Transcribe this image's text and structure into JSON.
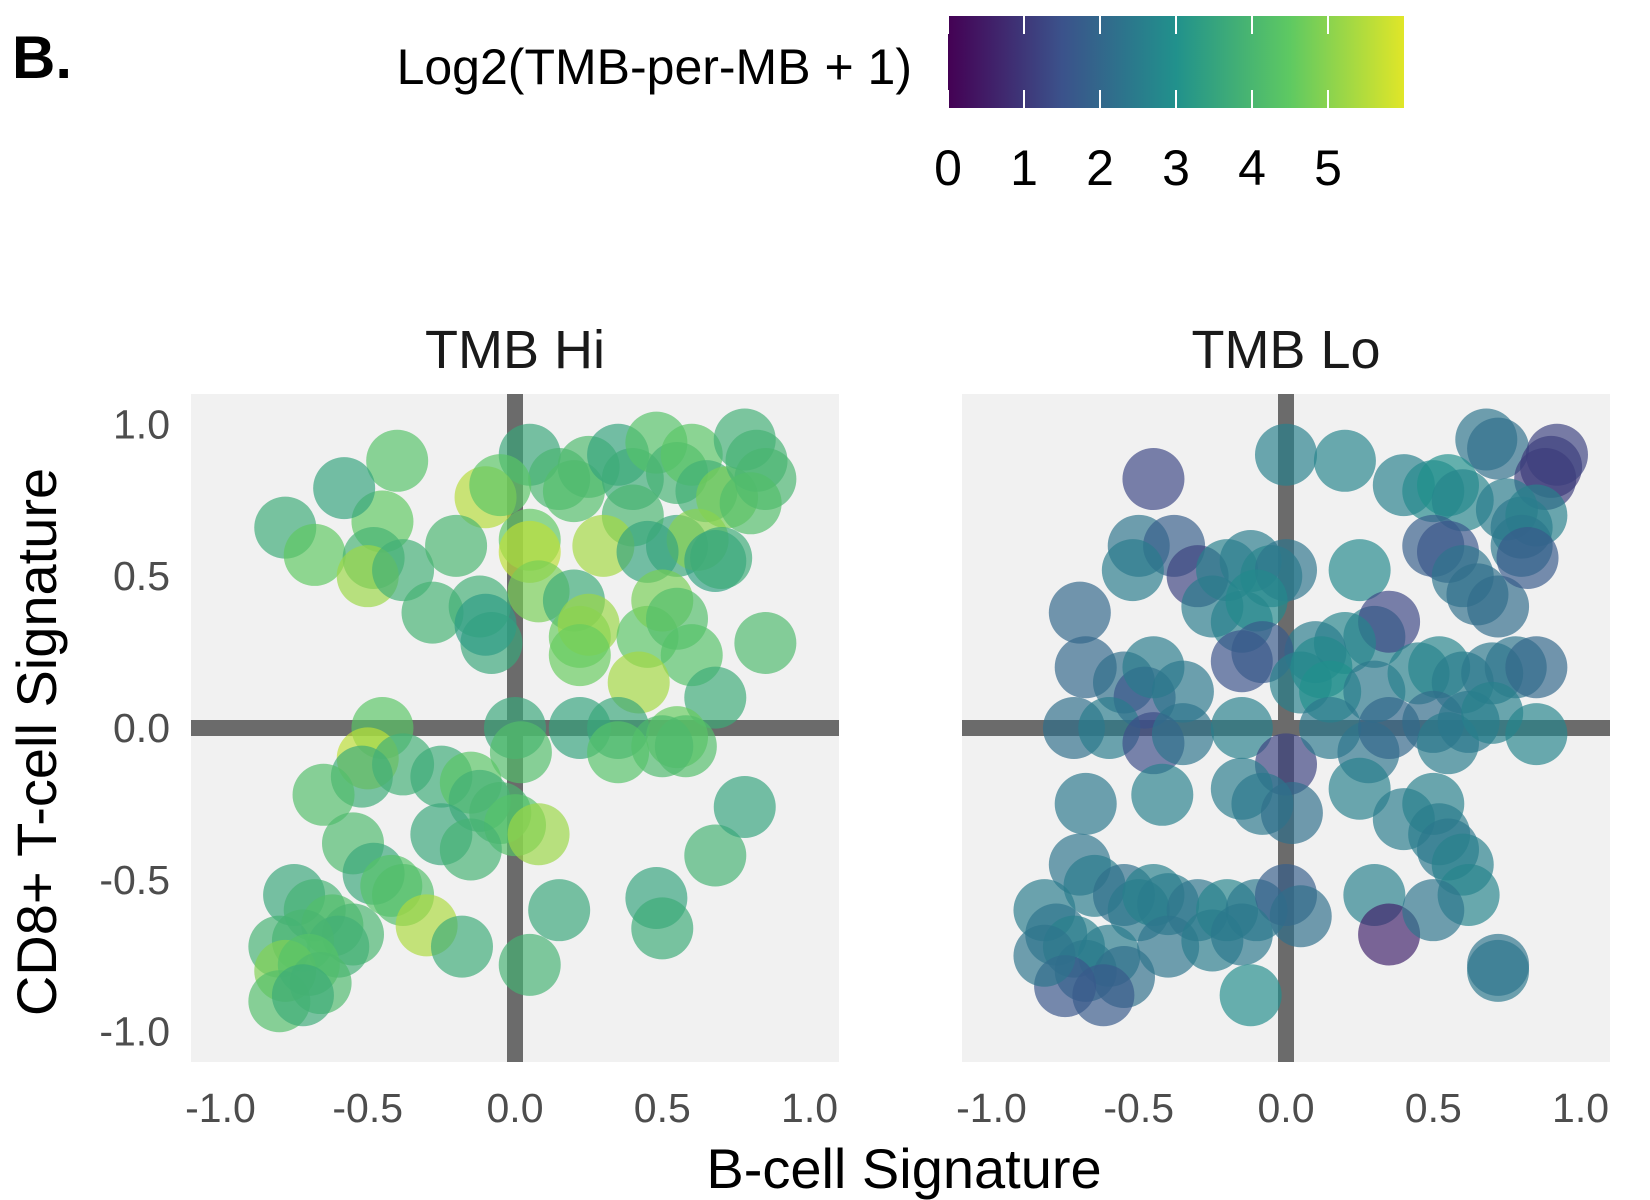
{
  "panel_label": "B.",
  "legend": {
    "title": "Log2(TMB-per-MB + 1)",
    "ticks": [
      "0",
      "1",
      "2",
      "3",
      "4",
      "5"
    ],
    "range": [
      0,
      6
    ],
    "palette": [
      "#440154",
      "#3b528b",
      "#21918c",
      "#5ec962",
      "#e0e628"
    ]
  },
  "axes": {
    "xlabel": "B-cell Signature",
    "ylabel": "CD8+ T-cell Signature",
    "x_ticks": [
      "-1.0",
      "-0.5",
      "0.0",
      "0.5",
      "1.0"
    ],
    "y_ticks": [
      "1.0",
      "0.5",
      "0.0",
      "-0.5",
      "-1.0"
    ]
  },
  "chart_data": [
    {
      "type": "scatter",
      "title": "TMB Hi",
      "xlim": [
        -1.1,
        1.1
      ],
      "ylim": [
        -1.1,
        1.1
      ],
      "reference_lines": {
        "x": 0,
        "y": 0
      },
      "points": [
        {
          "x": 0.05,
          "y": 0.9,
          "c": 3.6
        },
        {
          "x": 0.15,
          "y": 0.82,
          "c": 4.0
        },
        {
          "x": 0.2,
          "y": 0.78,
          "c": 4.2
        },
        {
          "x": 0.25,
          "y": 0.86,
          "c": 4.1
        },
        {
          "x": 0.35,
          "y": 0.9,
          "c": 3.5
        },
        {
          "x": 0.4,
          "y": 0.82,
          "c": 3.7
        },
        {
          "x": 0.48,
          "y": 0.94,
          "c": 4.3
        },
        {
          "x": 0.55,
          "y": 0.84,
          "c": 3.9
        },
        {
          "x": 0.6,
          "y": 0.9,
          "c": 4.4
        },
        {
          "x": 0.65,
          "y": 0.78,
          "c": 3.8
        },
        {
          "x": 0.72,
          "y": 0.76,
          "c": 4.8
        },
        {
          "x": 0.78,
          "y": 0.95,
          "c": 3.8
        },
        {
          "x": 0.82,
          "y": 0.88,
          "c": 3.9
        },
        {
          "x": 0.85,
          "y": 0.82,
          "c": 4.0
        },
        {
          "x": 0.8,
          "y": 0.74,
          "c": 4.2
        },
        {
          "x": 0.55,
          "y": 0.6,
          "c": 3.6
        },
        {
          "x": 0.62,
          "y": 0.62,
          "c": 5.0
        },
        {
          "x": 0.68,
          "y": 0.55,
          "c": 3.4
        },
        {
          "x": 0.7,
          "y": 0.56,
          "c": 3.7
        },
        {
          "x": 0.4,
          "y": 0.7,
          "c": 4.0
        },
        {
          "x": 0.3,
          "y": 0.6,
          "c": 5.3
        },
        {
          "x": 0.45,
          "y": 0.58,
          "c": 3.5
        },
        {
          "x": 0.05,
          "y": 0.62,
          "c": 4.5
        },
        {
          "x": 0.05,
          "y": 0.58,
          "c": 5.6
        },
        {
          "x": -0.1,
          "y": 0.76,
          "c": 5.5
        },
        {
          "x": -0.05,
          "y": 0.8,
          "c": 4.4
        },
        {
          "x": -0.45,
          "y": 0.68,
          "c": 4.5
        },
        {
          "x": -0.4,
          "y": 0.88,
          "c": 4.3
        },
        {
          "x": -0.58,
          "y": 0.79,
          "c": 3.5
        },
        {
          "x": -0.78,
          "y": 0.66,
          "c": 3.7
        },
        {
          "x": -0.68,
          "y": 0.57,
          "c": 4.5
        },
        {
          "x": -0.48,
          "y": 0.56,
          "c": 3.9
        },
        {
          "x": -0.5,
          "y": 0.5,
          "c": 5.2
        },
        {
          "x": -0.38,
          "y": 0.52,
          "c": 3.8
        },
        {
          "x": -0.28,
          "y": 0.38,
          "c": 3.9
        },
        {
          "x": -0.2,
          "y": 0.6,
          "c": 4.0
        },
        {
          "x": -0.12,
          "y": 0.4,
          "c": 3.8
        },
        {
          "x": -0.08,
          "y": 0.28,
          "c": 3.6
        },
        {
          "x": -0.1,
          "y": 0.34,
          "c": 3.3
        },
        {
          "x": 0.08,
          "y": 0.45,
          "c": 4.8
        },
        {
          "x": 0.2,
          "y": 0.42,
          "c": 3.7
        },
        {
          "x": 0.22,
          "y": 0.3,
          "c": 4.6
        },
        {
          "x": 0.25,
          "y": 0.34,
          "c": 5.2
        },
        {
          "x": 0.22,
          "y": 0.24,
          "c": 4.6
        },
        {
          "x": 0.45,
          "y": 0.3,
          "c": 4.4
        },
        {
          "x": 0.5,
          "y": 0.42,
          "c": 4.8
        },
        {
          "x": 0.55,
          "y": 0.36,
          "c": 4.2
        },
        {
          "x": 0.6,
          "y": 0.24,
          "c": 4.3
        },
        {
          "x": 0.42,
          "y": 0.15,
          "c": 5.3
        },
        {
          "x": 0.68,
          "y": 0.1,
          "c": 3.7
        },
        {
          "x": 0.85,
          "y": 0.28,
          "c": 4.1
        },
        {
          "x": 0.22,
          "y": 0.0,
          "c": 3.5
        },
        {
          "x": 0.35,
          "y": 0.0,
          "c": 3.6
        },
        {
          "x": 0.55,
          "y": -0.03,
          "c": 4.6
        },
        {
          "x": 0.58,
          "y": -0.06,
          "c": 4.2
        },
        {
          "x": 0.5,
          "y": -0.06,
          "c": 4.1
        },
        {
          "x": 0.35,
          "y": -0.08,
          "c": 4.3
        },
        {
          "x": 0.0,
          "y": 0.0,
          "c": 3.6
        },
        {
          "x": 0.02,
          "y": -0.08,
          "c": 4.2
        },
        {
          "x": -0.45,
          "y": 0.0,
          "c": 4.4
        },
        {
          "x": -0.5,
          "y": -0.1,
          "c": 5.6
        },
        {
          "x": -0.52,
          "y": -0.16,
          "c": 3.7
        },
        {
          "x": -0.65,
          "y": -0.22,
          "c": 4.2
        },
        {
          "x": -0.38,
          "y": -0.12,
          "c": 3.8
        },
        {
          "x": -0.25,
          "y": -0.16,
          "c": 3.7
        },
        {
          "x": -0.15,
          "y": -0.18,
          "c": 4.4
        },
        {
          "x": -0.12,
          "y": -0.24,
          "c": 3.8
        },
        {
          "x": -0.05,
          "y": -0.28,
          "c": 4.0
        },
        {
          "x": 0.0,
          "y": -0.32,
          "c": 4.3
        },
        {
          "x": 0.08,
          "y": -0.35,
          "c": 5.2
        },
        {
          "x": -0.25,
          "y": -0.35,
          "c": 3.6
        },
        {
          "x": -0.15,
          "y": -0.4,
          "c": 3.9
        },
        {
          "x": -0.55,
          "y": -0.38,
          "c": 4.1
        },
        {
          "x": -0.48,
          "y": -0.48,
          "c": 3.6
        },
        {
          "x": -0.42,
          "y": -0.52,
          "c": 4.3
        },
        {
          "x": -0.38,
          "y": -0.55,
          "c": 4.2
        },
        {
          "x": -0.3,
          "y": -0.65,
          "c": 5.4
        },
        {
          "x": -0.18,
          "y": -0.72,
          "c": 3.7
        },
        {
          "x": -0.75,
          "y": -0.55,
          "c": 3.6
        },
        {
          "x": -0.68,
          "y": -0.6,
          "c": 3.9
        },
        {
          "x": -0.62,
          "y": -0.65,
          "c": 4.2
        },
        {
          "x": -0.55,
          "y": -0.68,
          "c": 4.0
        },
        {
          "x": -0.6,
          "y": -0.72,
          "c": 3.8
        },
        {
          "x": -0.72,
          "y": -0.7,
          "c": 4.0
        },
        {
          "x": -0.8,
          "y": -0.72,
          "c": 3.9
        },
        {
          "x": -0.78,
          "y": -0.8,
          "c": 4.9
        },
        {
          "x": -0.7,
          "y": -0.78,
          "c": 4.3
        },
        {
          "x": -0.66,
          "y": -0.84,
          "c": 4.1
        },
        {
          "x": -0.8,
          "y": -0.9,
          "c": 4.2
        },
        {
          "x": -0.72,
          "y": -0.88,
          "c": 3.7
        },
        {
          "x": 0.15,
          "y": -0.6,
          "c": 3.6
        },
        {
          "x": 0.05,
          "y": -0.78,
          "c": 3.9
        },
        {
          "x": 0.48,
          "y": -0.56,
          "c": 3.5
        },
        {
          "x": 0.5,
          "y": -0.66,
          "c": 3.7
        },
        {
          "x": 0.68,
          "y": -0.42,
          "c": 3.9
        },
        {
          "x": 0.78,
          "y": -0.26,
          "c": 3.5
        }
      ]
    },
    {
      "type": "scatter",
      "title": "TMB Lo",
      "xlim": [
        -1.1,
        1.1
      ],
      "ylim": [
        -1.1,
        1.1
      ],
      "reference_lines": {
        "x": 0,
        "y": 0
      },
      "points": [
        {
          "x": 0.0,
          "y": 0.9,
          "c": 2.6
        },
        {
          "x": 0.2,
          "y": 0.88,
          "c": 2.7
        },
        {
          "x": -0.45,
          "y": 0.82,
          "c": 1.3
        },
        {
          "x": 0.68,
          "y": 0.95,
          "c": 2.3
        },
        {
          "x": 0.72,
          "y": 0.92,
          "c": 2.2
        },
        {
          "x": 0.9,
          "y": 0.86,
          "c": 1.0
        },
        {
          "x": 0.92,
          "y": 0.9,
          "c": 1.2
        },
        {
          "x": 0.88,
          "y": 0.82,
          "c": 1.1
        },
        {
          "x": 0.4,
          "y": 0.8,
          "c": 2.6
        },
        {
          "x": 0.5,
          "y": 0.78,
          "c": 2.8
        },
        {
          "x": 0.55,
          "y": 0.8,
          "c": 3.0
        },
        {
          "x": 0.6,
          "y": 0.75,
          "c": 2.7
        },
        {
          "x": 0.75,
          "y": 0.72,
          "c": 2.5
        },
        {
          "x": 0.8,
          "y": 0.66,
          "c": 2.4
        },
        {
          "x": 0.85,
          "y": 0.7,
          "c": 2.6
        },
        {
          "x": 0.5,
          "y": 0.6,
          "c": 1.8
        },
        {
          "x": 0.55,
          "y": 0.58,
          "c": 1.6
        },
        {
          "x": 0.6,
          "y": 0.5,
          "c": 2.3
        },
        {
          "x": 0.65,
          "y": 0.44,
          "c": 2.2
        },
        {
          "x": 0.72,
          "y": 0.4,
          "c": 2.1
        },
        {
          "x": 0.8,
          "y": 0.6,
          "c": 2.4
        },
        {
          "x": 0.82,
          "y": 0.56,
          "c": 1.7
        },
        {
          "x": -0.5,
          "y": 0.6,
          "c": 2.3
        },
        {
          "x": -0.38,
          "y": 0.6,
          "c": 1.8
        },
        {
          "x": -0.52,
          "y": 0.52,
          "c": 2.5
        },
        {
          "x": -0.3,
          "y": 0.5,
          "c": 1.2
        },
        {
          "x": -0.2,
          "y": 0.52,
          "c": 2.6
        },
        {
          "x": -0.12,
          "y": 0.55,
          "c": 2.5
        },
        {
          "x": -0.05,
          "y": 0.5,
          "c": 2.7
        },
        {
          "x": 0.0,
          "y": 0.52,
          "c": 2.3
        },
        {
          "x": -0.25,
          "y": 0.4,
          "c": 2.5
        },
        {
          "x": -0.15,
          "y": 0.35,
          "c": 2.6
        },
        {
          "x": -0.1,
          "y": 0.42,
          "c": 2.8
        },
        {
          "x": 0.25,
          "y": 0.52,
          "c": 2.8
        },
        {
          "x": 0.3,
          "y": 0.3,
          "c": 2.6
        },
        {
          "x": 0.35,
          "y": 0.35,
          "c": 1.3
        },
        {
          "x": 0.2,
          "y": 0.28,
          "c": 2.7
        },
        {
          "x": 0.1,
          "y": 0.25,
          "c": 2.5
        },
        {
          "x": -0.7,
          "y": 0.38,
          "c": 2.0
        },
        {
          "x": -0.68,
          "y": 0.2,
          "c": 2.0
        },
        {
          "x": -0.55,
          "y": 0.15,
          "c": 2.2
        },
        {
          "x": -0.48,
          "y": 0.1,
          "c": 1.6
        },
        {
          "x": -0.45,
          "y": 0.2,
          "c": 2.5
        },
        {
          "x": -0.35,
          "y": 0.12,
          "c": 2.4
        },
        {
          "x": -0.15,
          "y": 0.22,
          "c": 1.5
        },
        {
          "x": -0.08,
          "y": 0.25,
          "c": 1.7
        },
        {
          "x": 0.05,
          "y": 0.15,
          "c": 2.6
        },
        {
          "x": 0.12,
          "y": 0.2,
          "c": 2.8
        },
        {
          "x": 0.15,
          "y": 0.12,
          "c": 3.0
        },
        {
          "x": 0.3,
          "y": 0.12,
          "c": 2.4
        },
        {
          "x": 0.45,
          "y": 0.18,
          "c": 2.6
        },
        {
          "x": 0.52,
          "y": 0.2,
          "c": 2.7
        },
        {
          "x": 0.6,
          "y": 0.15,
          "c": 2.5
        },
        {
          "x": 0.7,
          "y": 0.18,
          "c": 2.4
        },
        {
          "x": 0.78,
          "y": 0.2,
          "c": 2.3
        },
        {
          "x": 0.85,
          "y": 0.2,
          "c": 2.0
        },
        {
          "x": -0.72,
          "y": 0.0,
          "c": 2.2
        },
        {
          "x": -0.6,
          "y": 0.0,
          "c": 2.5
        },
        {
          "x": -0.45,
          "y": -0.05,
          "c": 1.4
        },
        {
          "x": -0.35,
          "y": -0.02,
          "c": 2.3
        },
        {
          "x": -0.15,
          "y": 0.0,
          "c": 2.6
        },
        {
          "x": 0.0,
          "y": -0.12,
          "c": 1.2
        },
        {
          "x": 0.15,
          "y": 0.0,
          "c": 2.4
        },
        {
          "x": 0.28,
          "y": -0.08,
          "c": 2.3
        },
        {
          "x": 0.35,
          "y": 0.0,
          "c": 2.0
        },
        {
          "x": 0.5,
          "y": 0.02,
          "c": 2.1
        },
        {
          "x": 0.55,
          "y": -0.05,
          "c": 2.5
        },
        {
          "x": 0.62,
          "y": 0.02,
          "c": 2.4
        },
        {
          "x": 0.7,
          "y": 0.05,
          "c": 2.6
        },
        {
          "x": 0.85,
          "y": -0.02,
          "c": 2.7
        },
        {
          "x": -0.68,
          "y": -0.25,
          "c": 2.4
        },
        {
          "x": -0.42,
          "y": -0.22,
          "c": 2.6
        },
        {
          "x": -0.15,
          "y": -0.2,
          "c": 2.5
        },
        {
          "x": -0.08,
          "y": -0.25,
          "c": 2.4
        },
        {
          "x": 0.02,
          "y": -0.28,
          "c": 2.2
        },
        {
          "x": 0.25,
          "y": -0.2,
          "c": 2.6
        },
        {
          "x": 0.4,
          "y": -0.3,
          "c": 2.5
        },
        {
          "x": 0.5,
          "y": -0.25,
          "c": 2.6
        },
        {
          "x": 0.52,
          "y": -0.35,
          "c": 2.5
        },
        {
          "x": 0.55,
          "y": -0.4,
          "c": 2.4
        },
        {
          "x": 0.6,
          "y": -0.45,
          "c": 2.6
        },
        {
          "x": 0.62,
          "y": -0.55,
          "c": 2.7
        },
        {
          "x": -0.7,
          "y": -0.45,
          "c": 2.3
        },
        {
          "x": -0.65,
          "y": -0.52,
          "c": 2.5
        },
        {
          "x": -0.55,
          "y": -0.55,
          "c": 2.2
        },
        {
          "x": -0.5,
          "y": -0.6,
          "c": 2.4
        },
        {
          "x": -0.45,
          "y": -0.55,
          "c": 2.6
        },
        {
          "x": -0.4,
          "y": -0.58,
          "c": 2.5
        },
        {
          "x": -0.3,
          "y": -0.6,
          "c": 2.3
        },
        {
          "x": -0.2,
          "y": -0.6,
          "c": 2.7
        },
        {
          "x": -0.1,
          "y": -0.6,
          "c": 2.4
        },
        {
          "x": 0.0,
          "y": -0.55,
          "c": 1.8
        },
        {
          "x": 0.05,
          "y": -0.62,
          "c": 2.2
        },
        {
          "x": -0.82,
          "y": -0.6,
          "c": 2.5
        },
        {
          "x": -0.78,
          "y": -0.68,
          "c": 2.3
        },
        {
          "x": -0.72,
          "y": -0.72,
          "c": 2.6
        },
        {
          "x": -0.68,
          "y": -0.8,
          "c": 2.4
        },
        {
          "x": -0.6,
          "y": -0.75,
          "c": 2.5
        },
        {
          "x": -0.55,
          "y": -0.82,
          "c": 2.2
        },
        {
          "x": -0.75,
          "y": -0.85,
          "c": 1.6
        },
        {
          "x": -0.62,
          "y": -0.88,
          "c": 1.7
        },
        {
          "x": -0.82,
          "y": -0.75,
          "c": 2.3
        },
        {
          "x": -0.4,
          "y": -0.72,
          "c": 2.3
        },
        {
          "x": -0.25,
          "y": -0.7,
          "c": 2.5
        },
        {
          "x": -0.15,
          "y": -0.68,
          "c": 2.4
        },
        {
          "x": -0.12,
          "y": -0.88,
          "c": 2.9
        },
        {
          "x": 0.3,
          "y": -0.55,
          "c": 2.6
        },
        {
          "x": 0.35,
          "y": -0.68,
          "c": 0.6
        },
        {
          "x": 0.5,
          "y": -0.6,
          "c": 2.3
        },
        {
          "x": 0.72,
          "y": -0.8,
          "c": 2.4
        },
        {
          "x": 0.72,
          "y": -0.78,
          "c": 2.3
        }
      ]
    }
  ]
}
